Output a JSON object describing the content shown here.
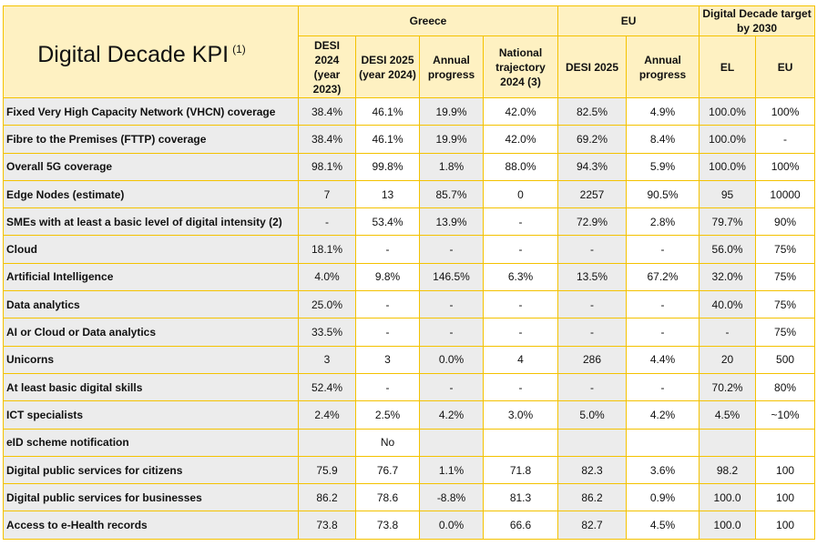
{
  "header": {
    "kpi_title": "Digital Decade KPI",
    "kpi_sup": "(1)",
    "groups": {
      "greece": "Greece",
      "eu": "EU",
      "target": "Digital Decade target by 2030"
    },
    "columns": [
      "DESI 2024 (year 2023)",
      "DESI 2025 (year 2024)",
      "Annual progress",
      "National trajectory 2024 (3)",
      "DESI 2025",
      "Annual progress",
      "EL",
      "EU"
    ]
  },
  "rows": [
    {
      "label": "Fixed Very High Capacity Network (VHCN) coverage",
      "values": [
        "38.4%",
        "46.1%",
        "19.9%",
        "42.0%",
        "82.5%",
        "4.9%",
        "100.0%",
        "100%"
      ]
    },
    {
      "label": "Fibre to the Premises (FTTP) coverage",
      "values": [
        "38.4%",
        "46.1%",
        "19.9%",
        "42.0%",
        "69.2%",
        "8.4%",
        "100.0%",
        "-"
      ]
    },
    {
      "label": "Overall 5G coverage",
      "values": [
        "98.1%",
        "99.8%",
        "1.8%",
        "88.0%",
        "94.3%",
        "5.9%",
        "100.0%",
        "100%"
      ]
    },
    {
      "label": "Edge Nodes (estimate)",
      "values": [
        "7",
        "13",
        "85.7%",
        "0",
        "2257",
        "90.5%",
        "95",
        "10000"
      ]
    },
    {
      "label": "SMEs with at least a basic level of digital intensity (2)",
      "values": [
        "-",
        "53.4%",
        "13.9%",
        "-",
        "72.9%",
        "2.8%",
        "79.7%",
        "90%"
      ]
    },
    {
      "label": "Cloud",
      "values": [
        "18.1%",
        "-",
        "-",
        "-",
        "-",
        "-",
        "56.0%",
        "75%"
      ]
    },
    {
      "label": "Artificial Intelligence",
      "values": [
        "4.0%",
        "9.8%",
        "146.5%",
        "6.3%",
        "13.5%",
        "67.2%",
        "32.0%",
        "75%"
      ]
    },
    {
      "label": "Data analytics",
      "values": [
        "25.0%",
        "-",
        "-",
        "-",
        "-",
        "-",
        "40.0%",
        "75%"
      ]
    },
    {
      "label": "AI or Cloud or Data analytics",
      "values": [
        "33.5%",
        "-",
        "-",
        "-",
        "-",
        "-",
        "-",
        "75%"
      ]
    },
    {
      "label": "Unicorns",
      "values": [
        "3",
        "3",
        "0.0%",
        "4",
        "286",
        "4.4%",
        "20",
        "500"
      ]
    },
    {
      "label": "At least basic digital skills",
      "values": [
        "52.4%",
        "-",
        "-",
        "-",
        "-",
        "-",
        "70.2%",
        "80%"
      ]
    },
    {
      "label": "ICT specialists",
      "values": [
        "2.4%",
        "2.5%",
        "4.2%",
        "3.0%",
        "5.0%",
        "4.2%",
        "4.5%",
        "~10%"
      ]
    },
    {
      "label": "eID scheme notification",
      "values": [
        "",
        "No",
        "",
        "",
        "",
        "",
        "",
        ""
      ]
    },
    {
      "label": "Digital public services for citizens",
      "values": [
        "75.9",
        "76.7",
        "1.1%",
        "71.8",
        "82.3",
        "3.6%",
        "98.2",
        "100"
      ]
    },
    {
      "label": "Digital public services for businesses",
      "values": [
        "86.2",
        "78.6",
        "-8.8%",
        "81.3",
        "86.2",
        "0.9%",
        "100.0",
        "100"
      ]
    },
    {
      "label": "Access to e-Health records",
      "values": [
        "73.8",
        "73.8",
        "0.0%",
        "66.6",
        "82.7",
        "4.5%",
        "100.0",
        "100"
      ]
    }
  ]
}
